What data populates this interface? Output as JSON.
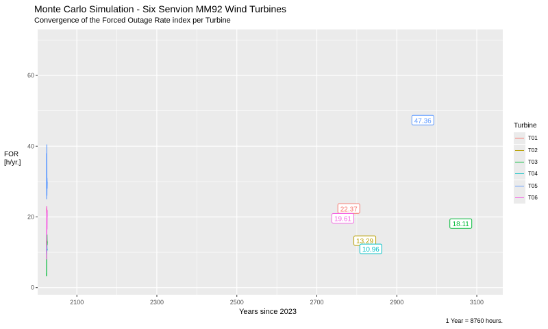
{
  "chart_data": {
    "type": "line",
    "title": "Monte Carlo Simulation - Six Senvion MM92 Wind Turbines",
    "subtitle": "Convergence of the Forced Outage Rate index per Turbine",
    "xlabel": "Years since 2023",
    "ylabel_line1": "FOR",
    "ylabel_line2": "[h/yr.]",
    "caption": "1 Year = 8760 hours.",
    "xlim": [
      2002,
      3165
    ],
    "ylim": [
      -2,
      73
    ],
    "xticks": [
      2100,
      2300,
      2500,
      2700,
      2900,
      3100
    ],
    "yticks": [
      0,
      20,
      40,
      60
    ],
    "grid": true,
    "legend_title": "Turbine",
    "legend_position": "right",
    "series": [
      {
        "name": "T01",
        "color": "#F8766D",
        "points": [
          [
            2024,
            22.37
          ],
          [
            2024.3,
            21.0
          ],
          [
            2024.6,
            23.0
          ],
          [
            2025,
            20.5
          ],
          [
            2025.4,
            22.0
          ],
          [
            2026,
            21.5
          ]
        ],
        "label_value": "22.37",
        "label_x": 2780,
        "label_y": 22.37
      },
      {
        "name": "T02",
        "color": "#B79F00",
        "points": [
          [
            2024,
            13.29
          ],
          [
            2024.3,
            11.5
          ],
          [
            2024.6,
            14.0
          ],
          [
            2025,
            12.0
          ],
          [
            2025.5,
            13.3
          ],
          [
            2026,
            12.8
          ]
        ],
        "label_value": "13.29",
        "label_x": 2820,
        "label_y": 13.29
      },
      {
        "name": "T03",
        "color": "#00BA38",
        "points": [
          [
            2024,
            4
          ],
          [
            2024.2,
            3.2
          ],
          [
            2024.4,
            6
          ],
          [
            2024.7,
            14
          ],
          [
            2025,
            11
          ],
          [
            2025.3,
            15
          ],
          [
            2025.6,
            12
          ],
          [
            2026,
            13
          ]
        ],
        "label_value": "18.11",
        "label_x": 3060,
        "label_y": 18.11
      },
      {
        "name": "T04",
        "color": "#00BFC4",
        "points": [
          [
            2024,
            10.96
          ],
          [
            2024.5,
            9.5
          ],
          [
            2025,
            12.0
          ],
          [
            2025.5,
            10.5
          ],
          [
            2026,
            11.0
          ]
        ],
        "label_value": "10.96",
        "label_x": 2835,
        "label_y": 10.96
      },
      {
        "name": "T05",
        "color": "#619CFF",
        "points": [
          [
            2024,
            28
          ],
          [
            2024.2,
            38
          ],
          [
            2024.35,
            25
          ],
          [
            2024.5,
            36
          ],
          [
            2024.7,
            30
          ],
          [
            2024.9,
            40.5
          ],
          [
            2025.1,
            26
          ],
          [
            2025.4,
            31
          ],
          [
            2025.7,
            28
          ],
          [
            2026,
            30
          ]
        ],
        "label_value": "47.36",
        "label_x": 2965,
        "label_y": 47.36
      },
      {
        "name": "T06",
        "color": "#F564E3",
        "points": [
          [
            2024,
            8
          ],
          [
            2024.3,
            18
          ],
          [
            2024.6,
            23
          ],
          [
            2024.9,
            15
          ],
          [
            2025.2,
            21
          ],
          [
            2025.5,
            16.5
          ],
          [
            2025.8,
            22
          ],
          [
            2026,
            20
          ]
        ],
        "label_value": "19.61",
        "label_x": 2765,
        "label_y": 19.61
      }
    ]
  }
}
